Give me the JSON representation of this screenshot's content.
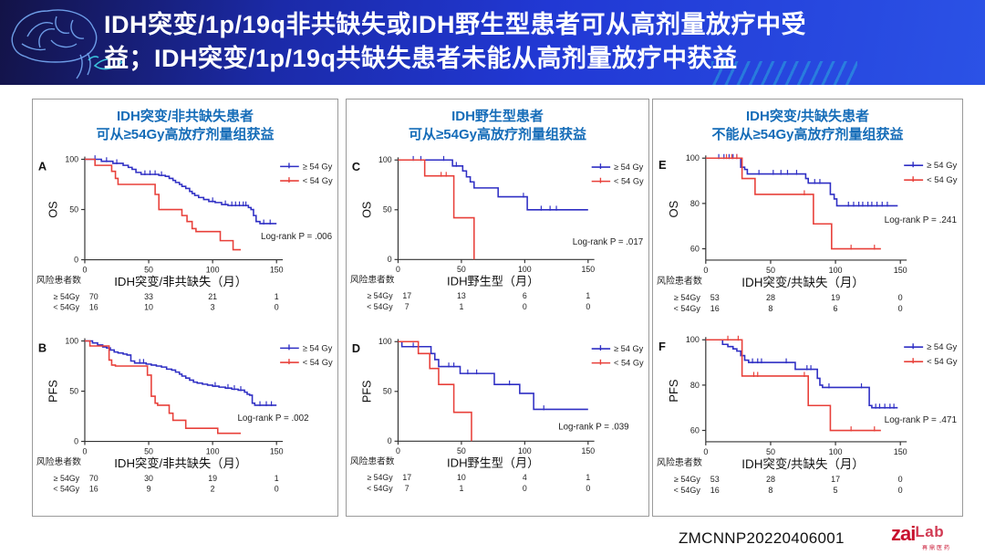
{
  "header": {
    "title_line1": "IDH突变/1p/19q非共缺失或IDH野生型患者可从高剂量放疗中受",
    "title_line2": "益；IDH突变/1p/19q共缺失患者未能从高剂量放疗中获益"
  },
  "colors": {
    "high_dose": "#2f2fc4",
    "low_dose": "#e8403a",
    "title_blue": "#156cb8",
    "axis": "#333333",
    "header_text": "#ffffff"
  },
  "legend": {
    "high": "≥ 54 Gy",
    "low": "< 54 Gy"
  },
  "risk_label": "风险患者数",
  "panels": [
    {
      "title_line1": "IDH突变/非共缺失患者",
      "title_line2": "可从≥54Gy高放疗剂量组获益"
    },
    {
      "title_line1": "IDH野生型患者",
      "title_line2": "可从≥54Gy高放疗剂量组获益"
    },
    {
      "title_line1": "IDH突变/共缺失患者",
      "title_line2": "不能从≥54Gy高放疗剂量组获益"
    }
  ],
  "footer": {
    "doc_code": "ZMCNNP20220406001",
    "logo_zai": "zai",
    "logo_lab": "Lab",
    "logo_sub": "再鼎医药"
  },
  "chart_data": [
    {
      "id": "A",
      "type": "line",
      "km": true,
      "ylabel": "OS",
      "xlabel": "IDH突变/非共缺失（月）",
      "xlim": [
        0,
        150
      ],
      "ylim": [
        0,
        100
      ],
      "xticks": [
        0,
        50,
        100,
        150
      ],
      "yticks": [
        0,
        50,
        100
      ],
      "logrank": "Log-rank P = .006",
      "logrank_pos": [
        334,
        101
      ],
      "series": [
        {
          "name": "≥ 54 Gy",
          "color": "high_dose",
          "end": 150,
          "points": [
            [
              0,
              100
            ],
            [
              13,
              98
            ],
            [
              22,
              96
            ],
            [
              30,
              94
            ],
            [
              34,
              92
            ],
            [
              37,
              90
            ],
            [
              40,
              87
            ],
            [
              44,
              85
            ],
            [
              58,
              84
            ],
            [
              63,
              83
            ],
            [
              66,
              81
            ],
            [
              69,
              79
            ],
            [
              71,
              77
            ],
            [
              74,
              75
            ],
            [
              76,
              73
            ],
            [
              79,
              71
            ],
            [
              82,
              68
            ],
            [
              84,
              66
            ],
            [
              86,
              64
            ],
            [
              89,
              62
            ],
            [
              93,
              60
            ],
            [
              97,
              58
            ],
            [
              102,
              57
            ],
            [
              107,
              55
            ],
            [
              112,
              54
            ],
            [
              128,
              52
            ],
            [
              130,
              50
            ],
            [
              132,
              44
            ],
            [
              134,
              38
            ],
            [
              137,
              36
            ]
          ],
          "censors": [
            8,
            17,
            25,
            47,
            51,
            55,
            60,
            100,
            110,
            115,
            118,
            121,
            124,
            126,
            140,
            145
          ]
        },
        {
          "name": "< 54 Gy",
          "color": "low_dose",
          "end": 122,
          "points": [
            [
              0,
              100
            ],
            [
              8,
              94
            ],
            [
              21,
              88
            ],
            [
              24,
              81
            ],
            [
              26,
              75
            ],
            [
              55,
              65
            ],
            [
              58,
              50
            ],
            [
              76,
              44
            ],
            [
              80,
              38
            ],
            [
              84,
              31
            ],
            [
              87,
              28
            ],
            [
              106,
              19
            ],
            [
              116,
              10
            ]
          ],
          "censors": []
        }
      ],
      "risk": {
        "groups": [
          {
            "label": "≥ 54Gy",
            "counts": [
              70,
              33,
              21,
              1
            ]
          },
          {
            "label": "< 54Gy",
            "counts": [
              16,
              10,
              3,
              0
            ]
          }
        ]
      }
    },
    {
      "id": "B",
      "type": "line",
      "km": true,
      "ylabel": "PFS",
      "xlabel": "IDH突变/非共缺失（月）",
      "xlim": [
        0,
        150
      ],
      "ylim": [
        0,
        100
      ],
      "xticks": [
        0,
        50,
        100,
        150
      ],
      "yticks": [
        0,
        50,
        100
      ],
      "logrank": "Log-rank P = .002",
      "logrank_pos": [
        308,
        101
      ],
      "series": [
        {
          "name": "≥ 54 Gy",
          "color": "high_dose",
          "end": 150,
          "points": [
            [
              0,
              100
            ],
            [
              6,
              98
            ],
            [
              10,
              96
            ],
            [
              14,
              94
            ],
            [
              17,
              93
            ],
            [
              20,
              91
            ],
            [
              23,
              89
            ],
            [
              26,
              88
            ],
            [
              30,
              87
            ],
            [
              33,
              86
            ],
            [
              36,
              80
            ],
            [
              39,
              78
            ],
            [
              48,
              77
            ],
            [
              52,
              76
            ],
            [
              56,
              75
            ],
            [
              60,
              74
            ],
            [
              64,
              72
            ],
            [
              68,
              71
            ],
            [
              71,
              69
            ],
            [
              74,
              67
            ],
            [
              76,
              65
            ],
            [
              79,
              63
            ],
            [
              82,
              61
            ],
            [
              85,
              59
            ],
            [
              88,
              58
            ],
            [
              92,
              57
            ],
            [
              96,
              56
            ],
            [
              100,
              55
            ],
            [
              105,
              54
            ],
            [
              110,
              53
            ],
            [
              115,
              52
            ],
            [
              120,
              51
            ],
            [
              125,
              49
            ],
            [
              127,
              47
            ],
            [
              129,
              46
            ],
            [
              131,
              38
            ],
            [
              133,
              36
            ]
          ],
          "censors": [
            43,
            46,
            102,
            112,
            117,
            122,
            137,
            142,
            146
          ]
        },
        {
          "name": "< 54 Gy",
          "color": "low_dose",
          "end": 122,
          "points": [
            [
              0,
              100
            ],
            [
              4,
              95
            ],
            [
              19,
              81
            ],
            [
              21,
              76
            ],
            [
              24,
              75
            ],
            [
              49,
              66
            ],
            [
              52,
              45
            ],
            [
              55,
              38
            ],
            [
              57,
              36
            ],
            [
              66,
              28
            ],
            [
              69,
              21
            ],
            [
              79,
              13
            ],
            [
              104,
              8
            ]
          ],
          "censors": []
        }
      ],
      "risk": {
        "groups": [
          {
            "label": "≥ 54Gy",
            "counts": [
              70,
              30,
              19,
              1
            ]
          },
          {
            "label": "< 54Gy",
            "counts": [
              16,
              9,
              2,
              0
            ]
          }
        ]
      }
    },
    {
      "id": "C",
      "type": "line",
      "km": true,
      "ylabel": "OS",
      "xlabel": "IDH野生型（月）",
      "xlim": [
        0,
        150
      ],
      "ylim": [
        0,
        100
      ],
      "xticks": [
        0,
        50,
        100,
        150
      ],
      "yticks": [
        0,
        50,
        100
      ],
      "logrank": "Log-rank P = .017",
      "logrank_pos": [
        334,
        107
      ],
      "series": [
        {
          "name": "≥ 54 Gy",
          "color": "high_dose",
          "end": 150,
          "points": [
            [
              0,
              100
            ],
            [
              43,
              94
            ],
            [
              51,
              89
            ],
            [
              54,
              83
            ],
            [
              57,
              78
            ],
            [
              60,
              72
            ],
            [
              79,
              63
            ],
            [
              102,
              50
            ]
          ],
          "censors": [
            12,
            18,
            36,
            46,
            99,
            113,
            120,
            125
          ]
        },
        {
          "name": "< 54 Gy",
          "color": "low_dose",
          "end": 60,
          "points": [
            [
              0,
              100
            ],
            [
              21,
              84
            ],
            [
              44,
              42
            ],
            [
              60,
              0
            ]
          ],
          "censors": [
            34,
            38
          ]
        }
      ],
      "risk": {
        "groups": [
          {
            "label": "≥ 54Gy",
            "counts": [
              17,
              13,
              6,
              1
            ]
          },
          {
            "label": "< 54Gy",
            "counts": [
              7,
              1,
              0,
              0
            ]
          }
        ]
      }
    },
    {
      "id": "D",
      "type": "line",
      "km": true,
      "ylabel": "PFS",
      "xlabel": "IDH野生型（月）",
      "xlim": [
        0,
        150
      ],
      "ylim": [
        0,
        100
      ],
      "xticks": [
        0,
        50,
        100,
        150
      ],
      "yticks": [
        0,
        50,
        100
      ],
      "logrank": "Log-rank P = .039",
      "logrank_pos": [
        318,
        111
      ],
      "series": [
        {
          "name": "≥ 54 Gy",
          "color": "high_dose",
          "end": 150,
          "points": [
            [
              0,
              100
            ],
            [
              3,
              95
            ],
            [
              26,
              88
            ],
            [
              29,
              82
            ],
            [
              32,
              75
            ],
            [
              49,
              68
            ],
            [
              76,
              57
            ],
            [
              96,
              48
            ],
            [
              107,
              32
            ]
          ],
          "censors": [
            12,
            40,
            44,
            55,
            62,
            88,
            115
          ]
        },
        {
          "name": "< 54 Gy",
          "color": "low_dose",
          "end": 58,
          "points": [
            [
              0,
              100
            ],
            [
              16,
              88
            ],
            [
              25,
              73
            ],
            [
              32,
              57
            ],
            [
              44,
              29
            ],
            [
              58,
              0
            ]
          ],
          "censors": []
        }
      ],
      "risk": {
        "groups": [
          {
            "label": "≥ 54Gy",
            "counts": [
              17,
              10,
              4,
              1
            ]
          },
          {
            "label": "< 54Gy",
            "counts": [
              7,
              1,
              0,
              0
            ]
          }
        ]
      }
    },
    {
      "id": "E",
      "type": "line",
      "km": true,
      "ylabel": "OS",
      "xlabel": "IDH突变/共缺失（月）",
      "xlim": [
        0,
        150
      ],
      "ylim": [
        55,
        100
      ],
      "xticks": [
        0,
        50,
        100,
        150
      ],
      "yticks": [
        60,
        80,
        100
      ],
      "logrank": "Log-rank P = .241",
      "logrank_pos": [
        334,
        83
      ],
      "series": [
        {
          "name": "≥ 54 Gy",
          "color": "high_dose",
          "end": 148,
          "points": [
            [
              0,
              100
            ],
            [
              27,
              96
            ],
            [
              30,
              95
            ],
            [
              32,
              93
            ],
            [
              77,
              91
            ],
            [
              79,
              89
            ],
            [
              96,
              84
            ],
            [
              99,
              82
            ],
            [
              101,
              79
            ]
          ],
          "censors": [
            10,
            14,
            18,
            21,
            24,
            41,
            52,
            58,
            63,
            70,
            84,
            88,
            110,
            114,
            118,
            121,
            125,
            128,
            132,
            136,
            140
          ]
        },
        {
          "name": "< 54 Gy",
          "color": "low_dose",
          "end": 135,
          "points": [
            [
              0,
              100
            ],
            [
              28,
              91
            ],
            [
              38,
              84
            ],
            [
              83,
              71
            ],
            [
              97,
              60
            ]
          ],
          "censors": [
            16,
            20,
            24,
            76,
            112,
            130
          ]
        }
      ],
      "risk": {
        "groups": [
          {
            "label": "≥ 54Gy",
            "counts": [
              53,
              28,
              19,
              0
            ]
          },
          {
            "label": "< 54Gy",
            "counts": [
              16,
              8,
              6,
              0
            ]
          }
        ]
      }
    },
    {
      "id": "F",
      "type": "line",
      "km": true,
      "ylabel": "PFS",
      "xlabel": "IDH突变/共缺失（月）",
      "xlim": [
        0,
        150
      ],
      "ylim": [
        55,
        100
      ],
      "xticks": [
        0,
        50,
        100,
        150
      ],
      "yticks": [
        60,
        80,
        100
      ],
      "logrank": "Log-rank P = .471",
      "logrank_pos": [
        334,
        103
      ],
      "series": [
        {
          "name": "≥ 54 Gy",
          "color": "high_dose",
          "end": 148,
          "points": [
            [
              0,
              100
            ],
            [
              13,
              98
            ],
            [
              17,
              97
            ],
            [
              21,
              96
            ],
            [
              24,
              95
            ],
            [
              27,
              93
            ],
            [
              30,
              91
            ],
            [
              33,
              90
            ],
            [
              69,
              87
            ],
            [
              86,
              83
            ],
            [
              88,
              80
            ],
            [
              90,
              79
            ],
            [
              126,
              71
            ],
            [
              128,
              70
            ]
          ],
          "censors": [
            36,
            40,
            43,
            62,
            78,
            81,
            95,
            120,
            131,
            134,
            138,
            142,
            145
          ]
        },
        {
          "name": "< 54 Gy",
          "color": "low_dose",
          "end": 135,
          "points": [
            [
              0,
              100
            ],
            [
              28,
              84
            ],
            [
              79,
              71
            ],
            [
              96,
              60
            ]
          ],
          "censors": [
            17,
            25,
            37,
            40,
            76,
            112,
            130
          ]
        }
      ],
      "risk": {
        "groups": [
          {
            "label": "≥ 54Gy",
            "counts": [
              53,
              28,
              17,
              0
            ]
          },
          {
            "label": "< 54Gy",
            "counts": [
              16,
              8,
              5,
              0
            ]
          }
        ]
      }
    }
  ]
}
